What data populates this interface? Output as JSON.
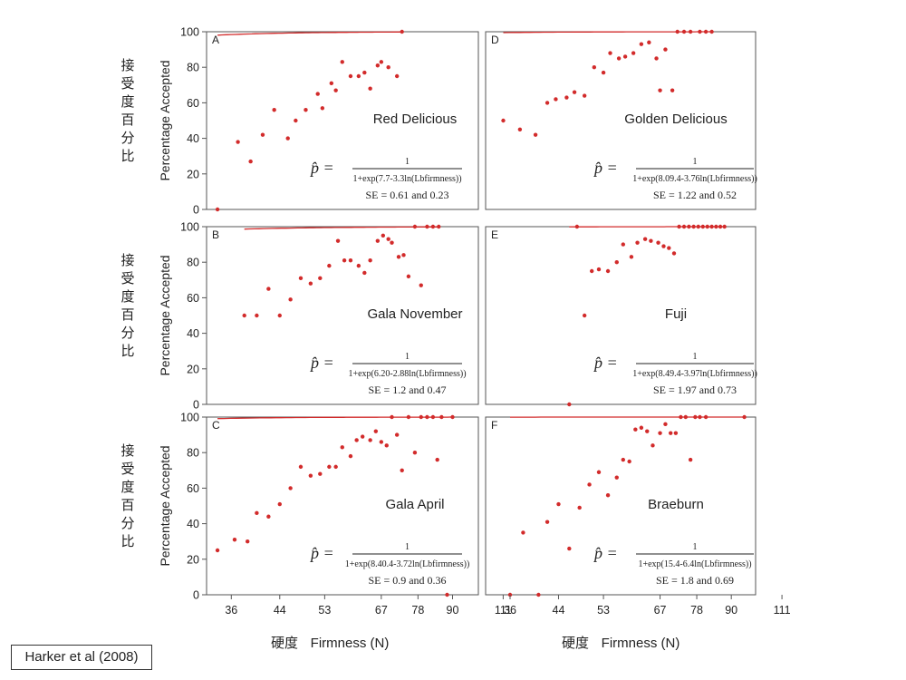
{
  "citation": "Harker et al (2008)",
  "colors": {
    "data": "#d22b2b",
    "fit": "#d22b2b",
    "frame": "#555555",
    "text": "#222222"
  },
  "labels": {
    "y_cjk": [
      "接",
      "受",
      "度",
      "百",
      "分",
      "比"
    ],
    "ylabel": "Percentage Accepted",
    "x_cjk": "硬度",
    "xlabel": "Firmness (N)",
    "formula_lhs": "p̂ =",
    "formula_num": "1"
  },
  "chart_data": [
    {
      "panel": "A",
      "title": "Red Delicious",
      "type": "scatter",
      "formula_den": "1+exp(7.7-3.3ln(Lbfirmness))",
      "se": "SE = 0.61 and 0.23",
      "a": 7.7,
      "b": 3.3,
      "yticks": [
        0,
        20,
        40,
        60,
        80,
        100
      ],
      "points": [
        [
          34,
          0
        ],
        [
          37,
          38
        ],
        [
          39,
          27
        ],
        [
          41,
          42
        ],
        [
          43,
          56
        ],
        [
          45.5,
          40
        ],
        [
          47,
          50
        ],
        [
          49,
          56
        ],
        [
          51.5,
          65
        ],
        [
          52.5,
          57
        ],
        [
          54.5,
          71
        ],
        [
          55.5,
          67
        ],
        [
          57,
          83
        ],
        [
          59,
          75
        ],
        [
          61,
          75
        ],
        [
          62.5,
          77
        ],
        [
          64,
          68
        ],
        [
          66,
          81
        ],
        [
          67,
          83
        ],
        [
          69,
          80
        ],
        [
          71.5,
          75
        ],
        [
          73,
          100
        ]
      ]
    },
    {
      "panel": "D",
      "title": "Golden Delicious",
      "type": "scatter",
      "formula_den": "1+exp(8.09.4-3.76ln(Lbfirmness))",
      "se": "SE = 1.22 and 0.52",
      "a": 8.09,
      "b": 3.76,
      "yticks": [],
      "points": [
        [
          35,
          50
        ],
        [
          37.5,
          45
        ],
        [
          40,
          42
        ],
        [
          42,
          60
        ],
        [
          43.5,
          62
        ],
        [
          45.5,
          63
        ],
        [
          47,
          66
        ],
        [
          49,
          64
        ],
        [
          51,
          80
        ],
        [
          53,
          77
        ],
        [
          54.5,
          88
        ],
        [
          56.5,
          85
        ],
        [
          58,
          86
        ],
        [
          60,
          88
        ],
        [
          62,
          93
        ],
        [
          64,
          94
        ],
        [
          66,
          85
        ],
        [
          67,
          67
        ],
        [
          68.5,
          90
        ],
        [
          70.5,
          67
        ],
        [
          72,
          100
        ],
        [
          74,
          100
        ],
        [
          76,
          100
        ],
        [
          79,
          100
        ],
        [
          81,
          100
        ],
        [
          83,
          100
        ]
      ]
    },
    {
      "panel": "B",
      "title": "Gala November",
      "type": "scatter",
      "formula_den": "1+exp(6.20-2.88ln(Lbfirmness))",
      "se": "SE = 1.2 and 0.47",
      "a": 6.2,
      "b": 2.88,
      "yticks": [
        0,
        20,
        40,
        60,
        80,
        100
      ],
      "points": [
        [
          38,
          50
        ],
        [
          40,
          50
        ],
        [
          42,
          65
        ],
        [
          44,
          50
        ],
        [
          46,
          59
        ],
        [
          48,
          71
        ],
        [
          50,
          68
        ],
        [
          52,
          71
        ],
        [
          54,
          78
        ],
        [
          56,
          92
        ],
        [
          57.5,
          81
        ],
        [
          59,
          81
        ],
        [
          61,
          78
        ],
        [
          62.5,
          74
        ],
        [
          64,
          81
        ],
        [
          66,
          92
        ],
        [
          67.5,
          95
        ],
        [
          69,
          93
        ],
        [
          70,
          91
        ],
        [
          72,
          83
        ],
        [
          73.5,
          84
        ],
        [
          75,
          72
        ],
        [
          77,
          100
        ],
        [
          79,
          67
        ],
        [
          81,
          100
        ],
        [
          83,
          100
        ],
        [
          85,
          100
        ]
      ]
    },
    {
      "panel": "E",
      "title": "Fuji",
      "type": "scatter",
      "formula_den": "1+exp(8.49.4-3.97ln(Lbfirmness))",
      "se": "SE = 1.97 and 0.73",
      "a": 8.49,
      "b": 3.97,
      "yticks": [],
      "points": [
        [
          46,
          0
        ],
        [
          47.5,
          100
        ],
        [
          49,
          50
        ],
        [
          50.5,
          75
        ],
        [
          52,
          76
        ],
        [
          54,
          75
        ],
        [
          56,
          80
        ],
        [
          57.5,
          90
        ],
        [
          59.5,
          83
        ],
        [
          61,
          91
        ],
        [
          63,
          93
        ],
        [
          64.5,
          92
        ],
        [
          66.5,
          91
        ],
        [
          68,
          89
        ],
        [
          69.5,
          88
        ],
        [
          71,
          85
        ],
        [
          72.5,
          100
        ],
        [
          74,
          100
        ],
        [
          75.5,
          100
        ],
        [
          77,
          100
        ],
        [
          78.5,
          100
        ],
        [
          80,
          100
        ],
        [
          81.5,
          100
        ],
        [
          83,
          100
        ],
        [
          84.5,
          100
        ],
        [
          86,
          100
        ],
        [
          87.5,
          100
        ]
      ]
    },
    {
      "panel": "C",
      "title": "Gala April",
      "type": "scatter",
      "formula_den": "1+exp(8.40.4-3.72ln(Lbfirmness))",
      "se": "SE = 0.9 and 0.36",
      "a": 8.4,
      "b": 3.72,
      "yticks": [
        0,
        20,
        40,
        60,
        80,
        100
      ],
      "points": [
        [
          34,
          25
        ],
        [
          36.5,
          31
        ],
        [
          38.5,
          30
        ],
        [
          40,
          46
        ],
        [
          42,
          44
        ],
        [
          44,
          51
        ],
        [
          46,
          60
        ],
        [
          48,
          72
        ],
        [
          50,
          67
        ],
        [
          52,
          68
        ],
        [
          54,
          72
        ],
        [
          55.5,
          72
        ],
        [
          57,
          83
        ],
        [
          59,
          78
        ],
        [
          60.5,
          87
        ],
        [
          62,
          89
        ],
        [
          64,
          87
        ],
        [
          65.5,
          92
        ],
        [
          67,
          86
        ],
        [
          68.5,
          84
        ],
        [
          70,
          100
        ],
        [
          71.5,
          90
        ],
        [
          73,
          70
        ],
        [
          75,
          100
        ],
        [
          77,
          80
        ],
        [
          79,
          100
        ],
        [
          81,
          100
        ],
        [
          83,
          100
        ],
        [
          84.5,
          76
        ],
        [
          86,
          100
        ],
        [
          88,
          0
        ],
        [
          90,
          100
        ]
      ]
    },
    {
      "panel": "F",
      "title": "Braeburn",
      "type": "scatter",
      "formula_den": "1+exp(15.4-6.4ln(Lbfirmness))",
      "se": "SE = 1.8 and 0.69",
      "a": 15.4,
      "b": 6.4,
      "yticks": [],
      "points": [
        [
          36,
          0
        ],
        [
          38,
          35
        ],
        [
          40.5,
          0
        ],
        [
          42,
          41
        ],
        [
          44,
          51
        ],
        [
          46,
          26
        ],
        [
          48,
          49
        ],
        [
          50,
          62
        ],
        [
          52,
          69
        ],
        [
          54,
          56
        ],
        [
          56,
          66
        ],
        [
          57.5,
          76
        ],
        [
          59,
          75
        ],
        [
          60.5,
          93
        ],
        [
          62,
          94
        ],
        [
          63.5,
          92
        ],
        [
          65,
          84
        ],
        [
          67,
          91
        ],
        [
          68.5,
          96
        ],
        [
          70,
          91
        ],
        [
          71.5,
          91
        ],
        [
          73,
          100
        ],
        [
          74.5,
          100
        ],
        [
          76,
          76
        ],
        [
          77.5,
          100
        ],
        [
          79,
          100
        ],
        [
          81,
          100
        ],
        [
          95,
          100
        ]
      ]
    }
  ],
  "x_axis": {
    "ticks": [
      36,
      44,
      53,
      67,
      78,
      90,
      111
    ],
    "tick_labels": [
      "36",
      "44",
      "53",
      "67",
      "78",
      "90",
      "111"
    ]
  }
}
